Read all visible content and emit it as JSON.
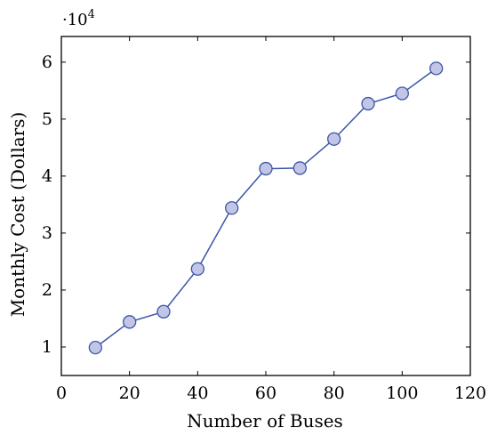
{
  "chart_data": {
    "type": "line",
    "title": "",
    "xlabel": "Number of Buses",
    "ylabel": "Monthly Cost (Dollars)",
    "y_scale_label": "·10",
    "y_scale_exponent": "4",
    "xlim": [
      0,
      120
    ],
    "ylim": [
      0.5,
      6.45
    ],
    "y_multiplier": 10000,
    "xticks": [
      0,
      20,
      40,
      60,
      80,
      100,
      120
    ],
    "yticks": [
      1,
      2,
      3,
      4,
      5,
      6
    ],
    "grid": false,
    "legend": "none",
    "series": [
      {
        "x": [
          10,
          20,
          30,
          40,
          50,
          60,
          70,
          80,
          90,
          100,
          110
        ],
        "values": [
          0.99,
          1.44,
          1.62,
          2.37,
          3.44,
          4.13,
          4.14,
          4.65,
          5.27,
          5.45,
          5.89
        ],
        "line_color": "#3b56a8",
        "marker_fill": "#c3c5e6"
      }
    ]
  }
}
